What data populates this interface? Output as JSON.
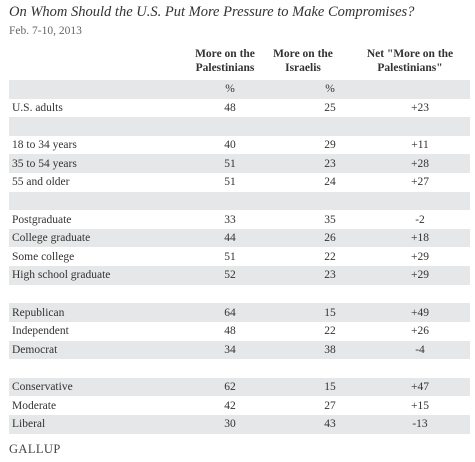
{
  "chart_data": {
    "type": "table",
    "title": "On Whom Should the U.S. Put More Pressure to Make Compromises?",
    "subtitle": "Feb. 7-10, 2013",
    "columns": [
      "More on the Palestinians",
      "More on the Israelis",
      "Net \"More on the Palestinians\""
    ],
    "column_lines": [
      [
        "More on the",
        "Palestinians"
      ],
      [
        "More on the",
        "Israelis"
      ],
      [
        "Net \"More on the",
        "Palestinians\""
      ]
    ],
    "units": [
      "%",
      "%",
      ""
    ],
    "rows": [
      {
        "label": "U.S. adults",
        "palestinians": "48",
        "israelis": "25",
        "net": "+23"
      },
      {
        "label": "",
        "palestinians": "",
        "israelis": "",
        "net": ""
      },
      {
        "label": "18 to 34 years",
        "palestinians": "40",
        "israelis": "29",
        "net": "+11"
      },
      {
        "label": "35 to 54 years",
        "palestinians": "51",
        "israelis": "23",
        "net": "+28"
      },
      {
        "label": "55 and older",
        "palestinians": "51",
        "israelis": "24",
        "net": "+27"
      },
      {
        "label": "",
        "palestinians": "",
        "israelis": "",
        "net": ""
      },
      {
        "label": "Postgraduate",
        "palestinians": "33",
        "israelis": "35",
        "net": "-2"
      },
      {
        "label": "College graduate",
        "palestinians": "44",
        "israelis": "26",
        "net": "+18"
      },
      {
        "label": "Some college",
        "palestinians": "51",
        "israelis": "22",
        "net": "+29"
      },
      {
        "label": "High school graduate",
        "palestinians": "52",
        "israelis": "23",
        "net": "+29"
      },
      {
        "label": "",
        "palestinians": "",
        "israelis": "",
        "net": ""
      },
      {
        "label": "Republican",
        "palestinians": "64",
        "israelis": "15",
        "net": "+49"
      },
      {
        "label": "Independent",
        "palestinians": "48",
        "israelis": "22",
        "net": "+26"
      },
      {
        "label": "Democrat",
        "palestinians": "34",
        "israelis": "38",
        "net": "-4"
      },
      {
        "label": "",
        "palestinians": "",
        "israelis": "",
        "net": ""
      },
      {
        "label": "Conservative",
        "palestinians": "62",
        "israelis": "15",
        "net": "+47"
      },
      {
        "label": "Moderate",
        "palestinians": "42",
        "israelis": "27",
        "net": "+15"
      },
      {
        "label": "Liberal",
        "palestinians": "30",
        "israelis": "43",
        "net": "-13"
      }
    ],
    "source": "GALLUP"
  }
}
